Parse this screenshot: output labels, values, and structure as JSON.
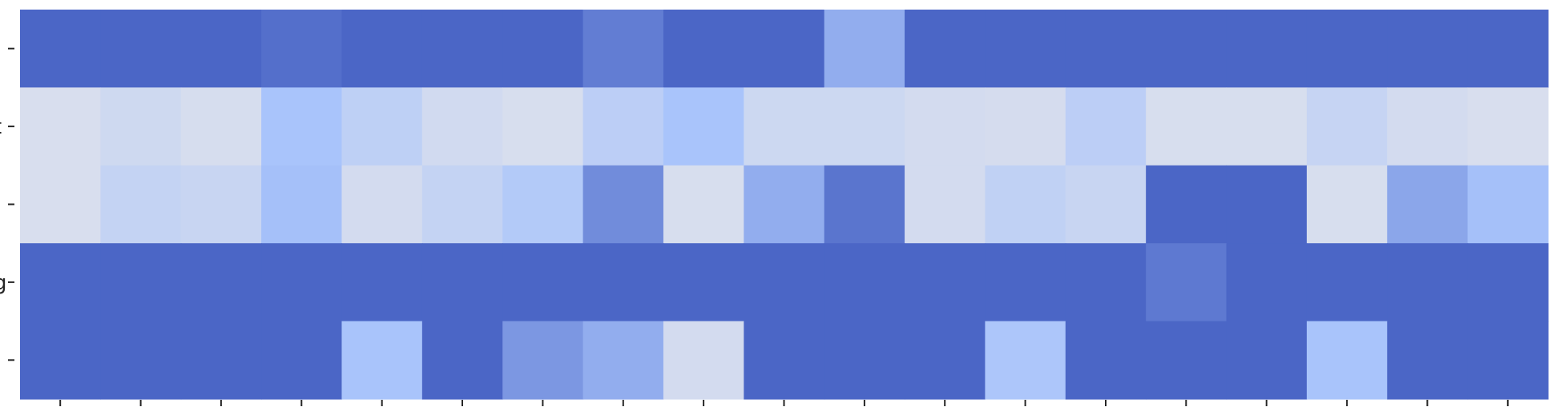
{
  "chart_data": {
    "type": "heatmap",
    "title": "",
    "xlabel": "",
    "ylabel": "",
    "n_rows": 5,
    "n_cols": 19,
    "row_tick_glyphs": [
      "",
      "t",
      "",
      "g",
      ""
    ],
    "color_scale": {
      "low": "#dde1ec",
      "mid": "#a9c4fb",
      "high": "#4b66c6",
      "range": [
        0,
        1
      ]
    },
    "values": [
      [
        1.0,
        1.0,
        1.0,
        0.95,
        1.0,
        1.0,
        1.0,
        0.88,
        1.0,
        1.0,
        0.62,
        1.0,
        1.0,
        1.0,
        1.0,
        1.0,
        1.0,
        1.0,
        1.0
      ],
      [
        0.05,
        0.14,
        0.07,
        0.5,
        0.3,
        0.12,
        0.06,
        0.32,
        0.5,
        0.16,
        0.16,
        0.1,
        0.08,
        0.32,
        0.06,
        0.06,
        0.22,
        0.1,
        0.05
      ],
      [
        0.05,
        0.24,
        0.2,
        0.52,
        0.1,
        0.24,
        0.4,
        0.8,
        0.06,
        0.62,
        0.92,
        0.1,
        0.28,
        0.2,
        1.0,
        1.0,
        0.06,
        0.66,
        0.52
      ],
      [
        1.0,
        1.0,
        1.0,
        1.0,
        1.0,
        1.0,
        1.0,
        1.0,
        1.0,
        1.0,
        1.0,
        1.0,
        1.0,
        1.0,
        0.9,
        1.0,
        1.0,
        1.0,
        1.0
      ],
      [
        1.0,
        1.0,
        1.0,
        1.0,
        0.5,
        1.0,
        0.74,
        0.62,
        0.1,
        1.0,
        1.0,
        1.0,
        0.46,
        1.0,
        1.0,
        1.0,
        0.5,
        1.0,
        1.0
      ]
    ]
  }
}
